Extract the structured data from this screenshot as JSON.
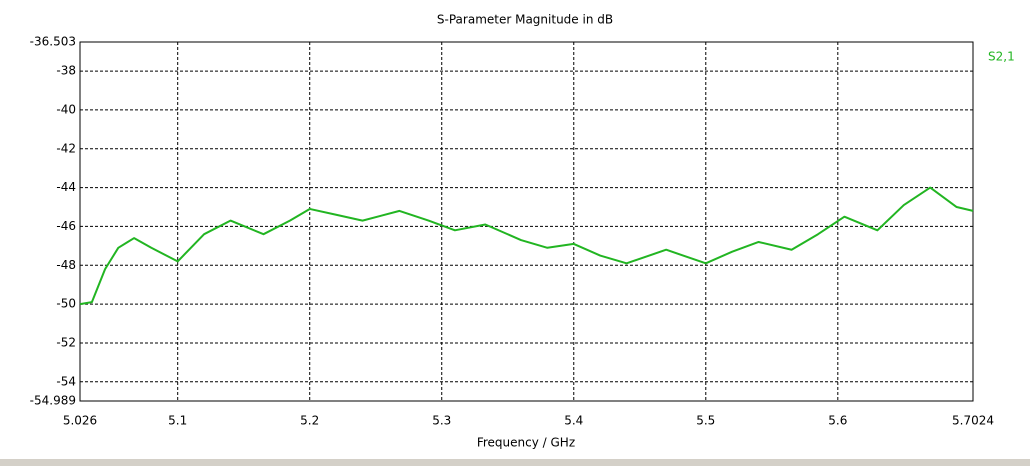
{
  "chart_data": {
    "type": "line",
    "title": "S-Parameter Magnitude in dB",
    "x_label": "Frequency / GHz",
    "x": [
      5.026,
      5.035,
      5.045,
      5.055,
      5.067,
      5.08,
      5.1,
      5.12,
      5.14,
      5.165,
      5.185,
      5.2,
      5.22,
      5.24,
      5.268,
      5.29,
      5.31,
      5.333,
      5.36,
      5.38,
      5.4,
      5.42,
      5.44,
      5.47,
      5.5,
      5.52,
      5.54,
      5.565,
      5.585,
      5.605,
      5.63,
      5.65,
      5.67,
      5.69,
      5.7024
    ],
    "series": [
      {
        "name": "S2,1",
        "color": "#22b522",
        "values": [
          -50.0,
          -49.9,
          -48.2,
          -47.1,
          -46.6,
          -47.1,
          -47.8,
          -46.4,
          -45.7,
          -46.4,
          -45.7,
          -45.1,
          -45.4,
          -45.7,
          -45.2,
          -45.7,
          -46.2,
          -45.9,
          -46.7,
          -47.1,
          -46.9,
          -47.5,
          -47.9,
          -47.2,
          -47.9,
          -47.3,
          -46.8,
          -47.2,
          -46.4,
          -45.5,
          -46.2,
          -44.9,
          -44.0,
          -45.0,
          -45.2
        ]
      }
    ],
    "xlim": [
      5.026,
      5.7024
    ],
    "xticks": [
      5.026,
      5.1,
      5.2,
      5.3,
      5.4,
      5.5,
      5.6,
      5.7024
    ],
    "ylim": [
      -54.989,
      -36.503
    ],
    "yticks": [
      -54.989,
      -54,
      -52,
      -50,
      -48,
      -46,
      -44,
      -42,
      -40,
      -38,
      -36.503
    ],
    "grid": true,
    "legend": "top-right"
  }
}
